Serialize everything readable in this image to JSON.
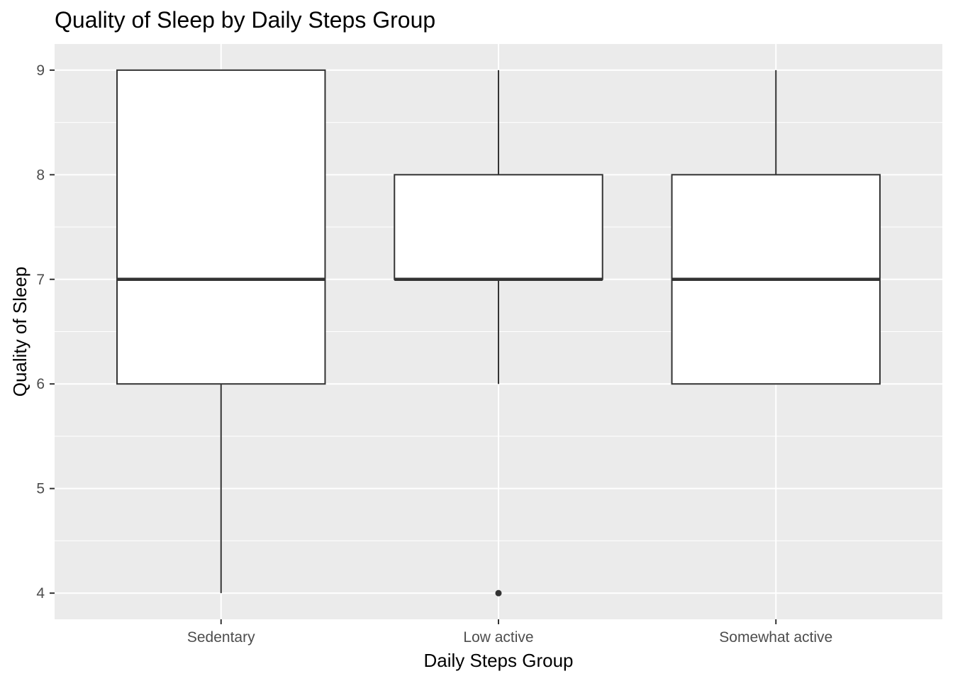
{
  "chart_data": {
    "type": "boxplot",
    "title": "Quality of Sleep by Daily Steps Group",
    "xlabel": "Daily Steps Group",
    "ylabel": "Quality of Sleep",
    "categories": [
      "Sedentary",
      "Low active",
      "Somewhat active"
    ],
    "y_ticks": [
      4,
      5,
      6,
      7,
      8,
      9
    ],
    "ylim": [
      3.75,
      9.25
    ],
    "grid": true,
    "boxes": [
      {
        "category": "Sedentary",
        "min": 4,
        "q1": 6,
        "median": 7,
        "q3": 9,
        "max": 9,
        "outliers": []
      },
      {
        "category": "Low active",
        "min": 6,
        "q1": 7,
        "median": 7,
        "q3": 8,
        "max": 9,
        "outliers": [
          4
        ]
      },
      {
        "category": "Somewhat active",
        "min": 6,
        "q1": 6,
        "median": 7,
        "q3": 8,
        "max": 9,
        "outliers": []
      }
    ],
    "colors": {
      "panel_background": "#ebebeb",
      "grid_major": "#ffffff",
      "box_fill": "#ffffff",
      "box_line": "#333333",
      "tick_text": "#4d4d4d",
      "tick_mark": "#333333"
    }
  }
}
